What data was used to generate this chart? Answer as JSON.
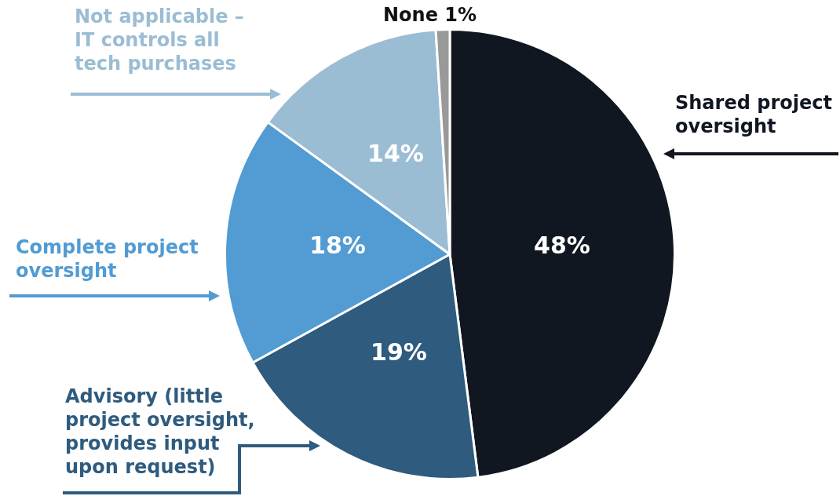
{
  "chart_data": {
    "type": "pie",
    "categories": [
      "Shared project oversight",
      "Advisory (little project oversight, provides input upon request)",
      "Complete project oversight",
      "Not applicable – IT controls all tech purchases",
      "None"
    ],
    "values": [
      48,
      19,
      18,
      14,
      1
    ],
    "colors": [
      "#111721",
      "#2e5b7e",
      "#529bd3",
      "#9bbdd4",
      "#999999"
    ],
    "value_labels": [
      "48%",
      "19%",
      "18%",
      "14%",
      "1%"
    ],
    "legend": false
  }
}
